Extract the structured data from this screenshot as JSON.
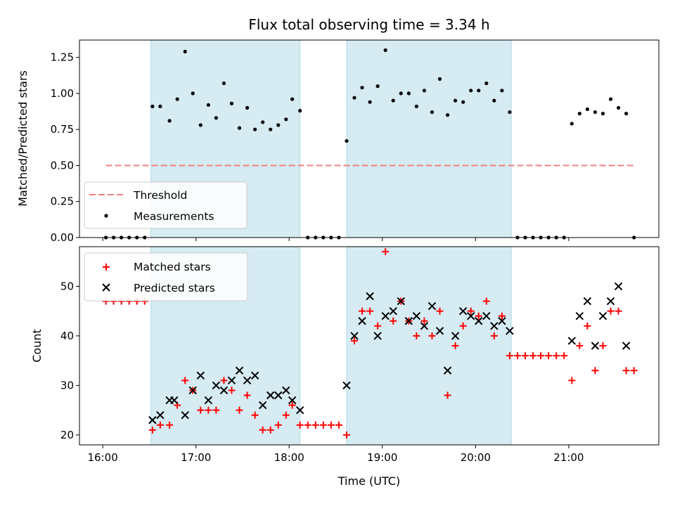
{
  "title": "Flux total observing time = 3.34 h",
  "chart_data": [
    {
      "type": "scatter",
      "panel": "top",
      "ylabel": "Matched/Predicted stars",
      "xlim": [
        "15:45",
        "21:58"
      ],
      "ylim": [
        0,
        1.37
      ],
      "yticks": [
        "0.00",
        "0.25",
        "0.50",
        "0.75",
        "1.00",
        "1.25"
      ],
      "ytick_values": [
        0,
        0.25,
        0.5,
        0.75,
        1.0,
        1.25
      ],
      "legend": {
        "position": "lower-left",
        "entries": [
          "Threshold",
          "Measurements"
        ]
      },
      "shaded_intervals": [
        [
          "16:31",
          "18:07"
        ],
        [
          "18:37",
          "20:23"
        ]
      ],
      "threshold": {
        "name": "Threshold",
        "value": 0.5,
        "x_range": [
          "16:02",
          "21:42"
        ],
        "color": "#f08080"
      },
      "series": [
        {
          "name": "Measurements",
          "color": "#000000",
          "x": [
            "16:02",
            "16:07",
            "16:12",
            "16:17",
            "16:22",
            "16:27",
            "16:32",
            "16:37",
            "16:43",
            "16:48",
            "16:53",
            "16:58",
            "17:03",
            "17:08",
            "17:13",
            "17:18",
            "17:23",
            "17:28",
            "17:33",
            "17:38",
            "17:43",
            "17:48",
            "17:53",
            "17:58",
            "18:02",
            "18:07",
            "18:12",
            "18:17",
            "18:22",
            "18:27",
            "18:32",
            "18:37",
            "18:42",
            "18:47",
            "18:52",
            "18:57",
            "19:02",
            "19:07",
            "19:12",
            "19:17",
            "19:22",
            "19:27",
            "19:32",
            "19:37",
            "19:42",
            "19:47",
            "19:52",
            "19:57",
            "20:02",
            "20:07",
            "20:12",
            "20:17",
            "20:22",
            "20:27",
            "20:32",
            "20:37",
            "20:42",
            "20:47",
            "20:52",
            "20:57",
            "21:02",
            "21:07",
            "21:12",
            "21:17",
            "21:22",
            "21:27",
            "21:32",
            "21:37",
            "21:42"
          ],
          "y": [
            0,
            0,
            0,
            0,
            0,
            0,
            0.91,
            0.91,
            0.81,
            0.96,
            1.29,
            1.0,
            0.78,
            0.92,
            0.83,
            1.07,
            0.93,
            0.76,
            0.9,
            0.75,
            0.8,
            0.75,
            0.78,
            0.82,
            0.96,
            0.88,
            0,
            0,
            0,
            0,
            0,
            0.67,
            0.97,
            1.04,
            0.94,
            1.05,
            1.3,
            0.95,
            1.0,
            1.0,
            0.91,
            1.02,
            0.87,
            1.1,
            0.85,
            0.95,
            0.94,
            1.02,
            1.02,
            1.07,
            0.95,
            1.02,
            0.87,
            0,
            0,
            0,
            0,
            0,
            0,
            0,
            0.79,
            0.86,
            0.89,
            0.87,
            0.86,
            0.96,
            0.9,
            0.86,
            0
          ]
        }
      ]
    },
    {
      "type": "scatter",
      "panel": "bottom",
      "xlabel": "Time (UTC)",
      "ylabel": "Count",
      "xlim": [
        "15:45",
        "21:58"
      ],
      "ylim": [
        18,
        58
      ],
      "xticks": [
        "16:00",
        "17:00",
        "18:00",
        "19:00",
        "20:00",
        "21:00"
      ],
      "yticks": [
        "20",
        "30",
        "40",
        "50"
      ],
      "ytick_values": [
        20,
        30,
        40,
        50
      ],
      "legend": {
        "position": "upper-left",
        "entries": [
          "Matched stars",
          "Predicted stars"
        ]
      },
      "shaded_intervals": [
        [
          "16:31",
          "18:07"
        ],
        [
          "18:37",
          "20:23"
        ]
      ],
      "series": [
        {
          "name": "Matched stars",
          "marker": "+",
          "color": "#ff0000",
          "x": [
            "16:02",
            "16:07",
            "16:12",
            "16:17",
            "16:22",
            "16:27",
            "16:32",
            "16:37",
            "16:43",
            "16:48",
            "16:53",
            "16:58",
            "17:03",
            "17:08",
            "17:13",
            "17:18",
            "17:23",
            "17:28",
            "17:33",
            "17:38",
            "17:43",
            "17:48",
            "17:53",
            "17:58",
            "18:02",
            "18:07",
            "18:12",
            "18:17",
            "18:22",
            "18:27",
            "18:32",
            "18:37",
            "18:42",
            "18:47",
            "18:52",
            "18:57",
            "19:02",
            "19:07",
            "19:12",
            "19:17",
            "19:22",
            "19:27",
            "19:32",
            "19:37",
            "19:42",
            "19:47",
            "19:52",
            "19:57",
            "20:02",
            "20:07",
            "20:12",
            "20:17",
            "20:22",
            "20:27",
            "20:32",
            "20:37",
            "20:42",
            "20:47",
            "20:52",
            "20:57",
            "21:02",
            "21:07",
            "21:12",
            "21:17",
            "21:22",
            "21:27",
            "21:32",
            "21:37",
            "21:42"
          ],
          "y": [
            47,
            47,
            47,
            47,
            47,
            47,
            21,
            22,
            22,
            26,
            31,
            29,
            25,
            25,
            25,
            31,
            29,
            25,
            28,
            24,
            21,
            21,
            22,
            24,
            26,
            22,
            22,
            22,
            22,
            22,
            22,
            20,
            39,
            45,
            45,
            42,
            57,
            43,
            47,
            43,
            40,
            43,
            40,
            45,
            28,
            38,
            42,
            45,
            44,
            47,
            40,
            44,
            36,
            36,
            36,
            36,
            36,
            36,
            36,
            36,
            31,
            38,
            42,
            33,
            38,
            45,
            45,
            33,
            33
          ]
        },
        {
          "name": "Predicted stars",
          "marker": "x",
          "color": "#000000",
          "x": [
            "16:32",
            "16:37",
            "16:43",
            "16:46",
            "16:53",
            "16:58",
            "17:03",
            "17:08",
            "17:13",
            "17:18",
            "17:23",
            "17:28",
            "17:33",
            "17:38",
            "17:43",
            "17:48",
            "17:53",
            "17:58",
            "18:02",
            "18:07",
            "18:37",
            "18:42",
            "18:47",
            "18:52",
            "18:57",
            "19:02",
            "19:07",
            "19:12",
            "19:17",
            "19:22",
            "19:27",
            "19:32",
            "19:37",
            "19:42",
            "19:47",
            "19:52",
            "19:57",
            "20:02",
            "20:07",
            "20:12",
            "20:17",
            "20:22",
            "21:02",
            "21:07",
            "21:12",
            "21:17",
            "21:22",
            "21:27",
            "21:32",
            "21:37"
          ],
          "y": [
            23,
            24,
            27,
            27,
            24,
            29,
            32,
            27,
            30,
            29,
            31,
            33,
            31,
            32,
            26,
            28,
            28,
            29,
            27,
            25,
            30,
            40,
            43,
            48,
            40,
            44,
            45,
            47,
            43,
            44,
            42,
            46,
            41,
            33,
            40,
            45,
            44,
            43,
            44,
            42,
            43,
            41,
            39,
            44,
            47,
            38,
            44,
            47,
            50,
            38
          ]
        }
      ]
    }
  ]
}
